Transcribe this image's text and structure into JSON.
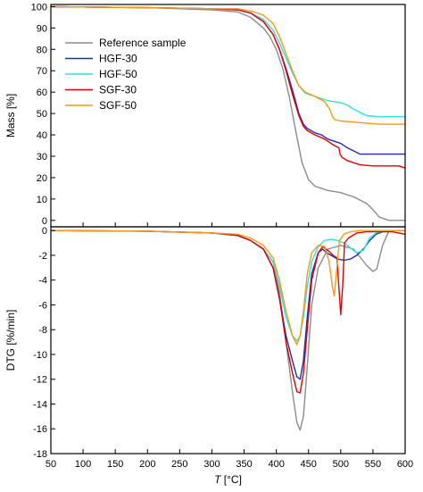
{
  "chart_data": [
    {
      "type": "line",
      "ylabel": "Mass [%]",
      "xlim": [
        50,
        600
      ],
      "ylim": [
        -3,
        101
      ],
      "yticks": [
        0,
        10,
        20,
        30,
        40,
        50,
        60,
        70,
        80,
        90,
        100
      ],
      "grid": false,
      "legend_position": "center-left",
      "series": [
        {
          "name": "Reference sample",
          "color": "#8c8c8c",
          "x": [
            50,
            200,
            300,
            340,
            360,
            380,
            390,
            400,
            410,
            420,
            430,
            440,
            450,
            460,
            470,
            480,
            500,
            520,
            540,
            550,
            560,
            570,
            575,
            580,
            600
          ],
          "y": [
            100,
            99.5,
            98.5,
            97.5,
            95,
            90,
            86,
            80,
            71,
            58,
            42,
            27,
            19,
            16,
            15,
            14,
            13,
            11,
            8,
            5,
            1.5,
            0.5,
            0,
            0,
            0
          ]
        },
        {
          "name": "HGF-30",
          "color": "#1f2fb5",
          "x": [
            50,
            200,
            300,
            340,
            360,
            380,
            395,
            405,
            415,
            425,
            435,
            442,
            448,
            460,
            470,
            480,
            490,
            500,
            510,
            530,
            550,
            570,
            600
          ],
          "y": [
            100,
            99.5,
            99,
            98.5,
            97,
            93,
            87,
            80,
            71,
            61,
            50,
            45,
            43,
            41,
            40,
            38,
            37,
            36,
            34,
            31,
            31,
            31,
            31
          ]
        },
        {
          "name": "HGF-50",
          "color": "#2fe0e0",
          "x": [
            50,
            200,
            300,
            340,
            360,
            380,
            395,
            405,
            415,
            425,
            435,
            445,
            460,
            480,
            500,
            510,
            520,
            540,
            560,
            580,
            600
          ],
          "y": [
            100,
            99.5,
            99,
            98.5,
            97,
            94,
            89,
            83,
            76,
            69,
            63,
            59.5,
            58,
            56,
            55,
            54,
            52,
            49,
            48.5,
            48.5,
            48.5
          ]
        },
        {
          "name": "SGF-30",
          "color": "#e00000",
          "x": [
            50,
            200,
            300,
            340,
            360,
            380,
            395,
            405,
            415,
            425,
            435,
            442,
            448,
            460,
            475,
            485,
            490,
            497,
            499,
            502,
            510,
            530,
            550,
            570,
            580,
            590,
            600
          ],
          "y": [
            100,
            99.5,
            99,
            98.5,
            97,
            93,
            87,
            80,
            70,
            59,
            49,
            44,
            42,
            40,
            38,
            36,
            35,
            34,
            31,
            29.5,
            28,
            26,
            25.5,
            25.5,
            25.5,
            25.5,
            24.5
          ]
        },
        {
          "name": "SGF-50",
          "color": "#f29b17",
          "x": [
            50,
            200,
            300,
            340,
            360,
            380,
            395,
            405,
            415,
            425,
            435,
            445,
            460,
            475,
            483,
            488,
            492,
            500,
            520,
            540,
            560,
            580,
            600
          ],
          "y": [
            100,
            99.5,
            99,
            99,
            98,
            96,
            92,
            86,
            78,
            70,
            63,
            60,
            58,
            55.5,
            52,
            48,
            47,
            46.5,
            46,
            45.5,
            45,
            45,
            45
          ]
        }
      ]
    },
    {
      "type": "line",
      "xlabel": "T [°C]",
      "ylabel": "DTG [%/min]",
      "xlim": [
        50,
        600
      ],
      "ylim": [
        -18,
        0.3
      ],
      "yticks": [
        0,
        -2,
        -4,
        -6,
        -8,
        -10,
        -12,
        -14,
        -16,
        -18
      ],
      "xticks": [
        50,
        100,
        150,
        200,
        250,
        300,
        350,
        400,
        450,
        500,
        550,
        600
      ],
      "grid": false,
      "series": [
        {
          "name": "Reference sample",
          "color": "#8c8c8c",
          "x": [
            50,
            200,
            300,
            340,
            360,
            380,
            395,
            405,
            415,
            425,
            432,
            437,
            442,
            448,
            455,
            465,
            480,
            500,
            520,
            540,
            550,
            556,
            565,
            575,
            580,
            600
          ],
          "y": [
            0,
            -0.05,
            -0.2,
            -0.4,
            -0.8,
            -1.5,
            -2.5,
            -5,
            -9,
            -13,
            -15.5,
            -16.1,
            -15,
            -11,
            -6,
            -3,
            -1.5,
            -1.2,
            -1.5,
            -2.8,
            -3.3,
            -3.1,
            -1.2,
            0,
            0,
            0
          ]
        },
        {
          "name": "HGF-30",
          "color": "#1f2fb5",
          "x": [
            50,
            200,
            300,
            340,
            360,
            380,
            395,
            405,
            415,
            425,
            432,
            437,
            442,
            448,
            455,
            465,
            472,
            478,
            485,
            495,
            505,
            515,
            525,
            535,
            545,
            555,
            565,
            575,
            600
          ],
          "y": [
            0,
            -0.05,
            -0.2,
            -0.4,
            -0.8,
            -1.5,
            -3,
            -5.5,
            -8.5,
            -10.5,
            -11.8,
            -12,
            -10.5,
            -7,
            -3.5,
            -1.8,
            -1.5,
            -1.8,
            -2,
            -2.3,
            -2.4,
            -2.3,
            -2,
            -1.5,
            -0.8,
            -0.3,
            -0.1,
            0,
            0
          ]
        },
        {
          "name": "HGF-50",
          "color": "#2fe0e0",
          "x": [
            50,
            200,
            300,
            340,
            360,
            380,
            395,
            405,
            415,
            425,
            432,
            437,
            442,
            448,
            455,
            465,
            475,
            485,
            495,
            505,
            515,
            525,
            535,
            545,
            555,
            570,
            600
          ],
          "y": [
            0,
            -0.05,
            -0.2,
            -0.4,
            -0.8,
            -1.5,
            -2.5,
            -4.5,
            -7,
            -8.5,
            -8.9,
            -8.5,
            -7,
            -4.5,
            -2.5,
            -1.3,
            -0.8,
            -0.7,
            -0.8,
            -1,
            -1.4,
            -1.8,
            -1.6,
            -0.6,
            -0.2,
            0,
            0
          ]
        },
        {
          "name": "SGF-30",
          "color": "#e00000",
          "x": [
            50,
            200,
            300,
            340,
            360,
            380,
            395,
            405,
            415,
            425,
            432,
            437,
            442,
            448,
            455,
            465,
            472,
            480,
            488,
            494,
            497,
            500,
            503,
            506,
            512,
            525,
            540,
            560,
            580,
            590,
            600
          ],
          "y": [
            0,
            -0.05,
            -0.2,
            -0.4,
            -0.8,
            -1.5,
            -3,
            -5.5,
            -9,
            -11.5,
            -13,
            -13.1,
            -11.5,
            -8,
            -4,
            -1.8,
            -1.3,
            -1.6,
            -2,
            -2.2,
            -4.5,
            -6.8,
            -4.5,
            -1,
            -0.6,
            -0.2,
            -0.1,
            -0.1,
            -0.1,
            -0.2,
            -0.3
          ]
        },
        {
          "name": "SGF-50",
          "color": "#f29b17",
          "x": [
            50,
            200,
            300,
            340,
            360,
            380,
            395,
            405,
            415,
            425,
            432,
            437,
            442,
            448,
            455,
            465,
            475,
            482,
            487,
            490,
            493,
            498,
            505,
            515,
            530,
            560,
            600
          ],
          "y": [
            0,
            -0.05,
            -0.2,
            -0.3,
            -0.6,
            -1.2,
            -2.2,
            -4,
            -6.5,
            -8.5,
            -9.2,
            -8.5,
            -6.5,
            -3.5,
            -1.8,
            -1.2,
            -1.3,
            -2.5,
            -4.5,
            -5.3,
            -3.5,
            -0.8,
            -0.3,
            -0.1,
            0,
            0,
            0
          ]
        }
      ]
    }
  ]
}
